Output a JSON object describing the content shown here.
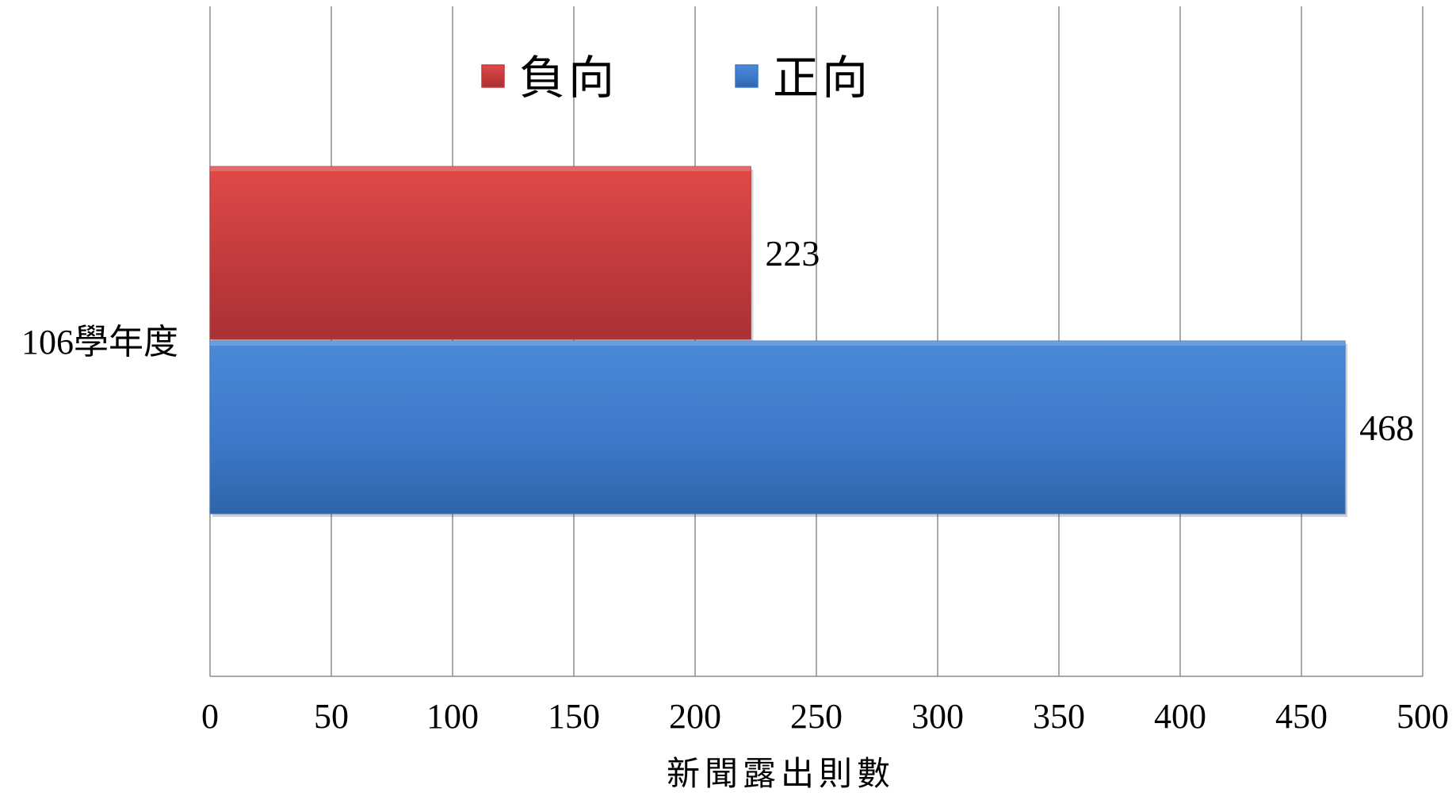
{
  "chart_data": {
    "type": "bar",
    "orientation": "horizontal",
    "categories": [
      "106學年度"
    ],
    "series": [
      {
        "name": "負向",
        "values": [
          223
        ],
        "color": "#c0393b"
      },
      {
        "name": "正向",
        "values": [
          468
        ],
        "color": "#3c78c8"
      }
    ],
    "xlabel": "新聞露出則數",
    "ylabel": "",
    "xlim": [
      0,
      500
    ],
    "xticks": [
      0,
      50,
      100,
      150,
      200,
      250,
      300,
      350,
      400,
      450,
      500
    ],
    "grid": "vertical",
    "legend": "top-center",
    "data_labels": true
  }
}
